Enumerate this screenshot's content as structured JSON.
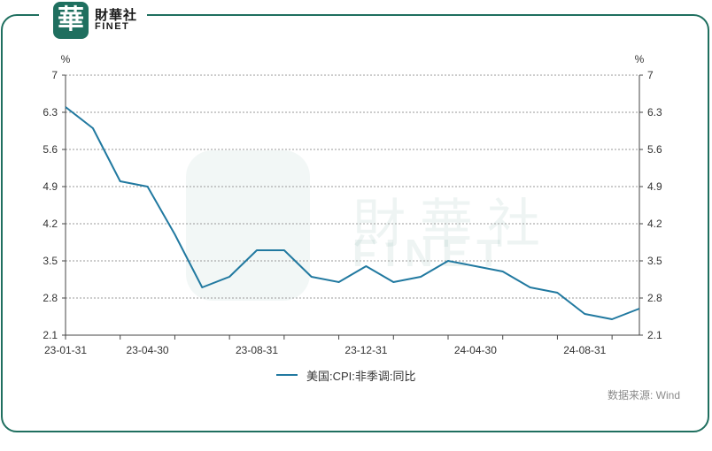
{
  "brand": {
    "logo_char": "華",
    "name_cn": "財華社",
    "name_en": "FINET"
  },
  "colors": {
    "accent": "#1f6f5f",
    "series": "#2179a0",
    "grid": "#9a9a9a"
  },
  "legend": {
    "label": "美国:CPI:非季调:同比"
  },
  "source": "数据来源: Wind",
  "chart_data": {
    "type": "line",
    "title": "",
    "xlabel": "",
    "ylabel_left": "%",
    "ylabel_right": "%",
    "ylim": [
      2.1,
      7
    ],
    "yticks": [
      2.1,
      2.8,
      3.5,
      4.2,
      4.9,
      5.6,
      6.3,
      7
    ],
    "ytick_labels": [
      "2.1",
      "2.8",
      "3.5",
      "4.2",
      "4.9",
      "5.6",
      "6.3",
      "7"
    ],
    "grid": "horizontal dotted",
    "legend_position": "bottom",
    "x_tick_labels": [
      {
        "index": 0,
        "label": "23-01-31"
      },
      {
        "index": 3,
        "label": "23-04-30"
      },
      {
        "index": 7,
        "label": "23-08-31"
      },
      {
        "index": 11,
        "label": "23-12-31"
      },
      {
        "index": 15,
        "label": "24-04-30"
      },
      {
        "index": 19,
        "label": "24-08-31"
      }
    ],
    "series": [
      {
        "name": "美国:CPI:非季调:同比",
        "values": [
          6.4,
          6.0,
          5.0,
          4.9,
          4.0,
          3.0,
          3.2,
          3.7,
          3.7,
          3.2,
          3.1,
          3.4,
          3.1,
          3.2,
          3.5,
          3.4,
          3.3,
          3.0,
          2.9,
          2.5,
          2.4,
          2.6
        ]
      }
    ]
  }
}
